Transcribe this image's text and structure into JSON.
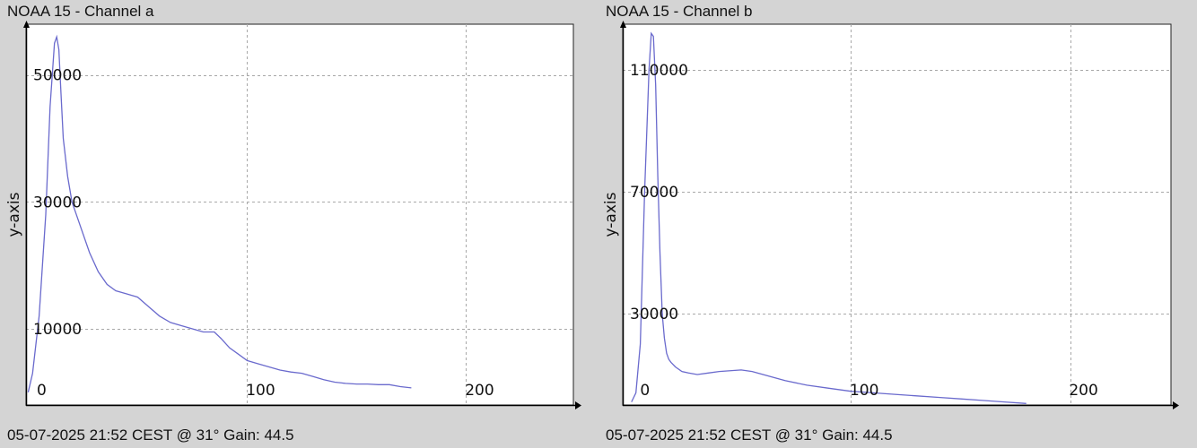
{
  "panels": [
    {
      "title": "NOAA 15 - Channel a",
      "footer": "05-07-2025 21:52 CEST @ 31° Gain: 44.5",
      "colors": {
        "line": "#6a6acd",
        "background": "#ffffff",
        "grid": "#a8a8a8"
      },
      "chart_data": {
        "type": "line",
        "title": "NOAA 15 - Channel a",
        "xlabel": "",
        "ylabel": "y-axis",
        "xlim": [
          -1,
          249
        ],
        "ylim": [
          -2000,
          58000
        ],
        "xticks": [
          0,
          100,
          200
        ],
        "yticks": [
          10000,
          30000,
          50000
        ],
        "grid": true,
        "series": [
          {
            "x": [
              0,
              2,
              5,
              8,
              10,
              12,
              13,
              14,
              15,
              16,
              18,
              20,
              24,
              28,
              32,
              36,
              40,
              45,
              50,
              55,
              60,
              65,
              70,
              75,
              80,
              85,
              88,
              92,
              96,
              100,
              105,
              110,
              115,
              120,
              125,
              130,
              135,
              140,
              145,
              150,
              155,
              160,
              165,
              170,
              175
            ],
            "y": [
              0,
              3000,
              12000,
              28000,
              45000,
              55000,
              56000,
              54000,
              47000,
              40000,
              34000,
              30000,
              26000,
              22000,
              19000,
              17000,
              16000,
              15500,
              15000,
              13500,
              12000,
              11000,
              10500,
              10000,
              9500,
              9500,
              8500,
              7000,
              6000,
              5000,
              4500,
              4000,
              3500,
              3200,
              3000,
              2500,
              2000,
              1600,
              1400,
              1300,
              1300,
              1200,
              1200,
              900,
              700
            ]
          }
        ]
      }
    },
    {
      "title": "NOAA 15 - Channel b",
      "footer": "05-07-2025 21:52 CEST @ 31° Gain: 44.5",
      "colors": {
        "line": "#6a6acd",
        "background": "#ffffff",
        "grid": "#a8a8a8"
      },
      "chart_data": {
        "type": "line",
        "title": "NOAA 15 - Channel b",
        "xlabel": "",
        "ylabel": "y-axis",
        "xlim": [
          -4,
          246
        ],
        "ylim": [
          0,
          125000
        ],
        "xticks": [
          0,
          100,
          200
        ],
        "yticks": [
          30000,
          70000,
          110000
        ],
        "grid": true,
        "series": [
          {
            "x": [
              0,
              2,
              4,
              6,
              8,
              9,
              10,
              11,
              12,
              13,
              14,
              15,
              16,
              17,
              18,
              20,
              23,
              26,
              30,
              35,
              40,
              50,
              55,
              60,
              65,
              70,
              80,
              90,
              100,
              110,
              120,
              130,
              140,
              150,
              160,
              170,
              180
            ],
            "y": [
              1000,
              4000,
              20000,
              70000,
              110000,
              122000,
              121000,
              105000,
              75000,
              50000,
              30000,
              22000,
              17000,
              15000,
              14000,
              12500,
              11000,
              10500,
              10000,
              10500,
              11000,
              11500,
              11000,
              10000,
              9000,
              8000,
              6500,
              5500,
              4500,
              4000,
              3500,
              3000,
              2500,
              2000,
              1500,
              1000,
              500
            ]
          }
        ]
      }
    }
  ]
}
